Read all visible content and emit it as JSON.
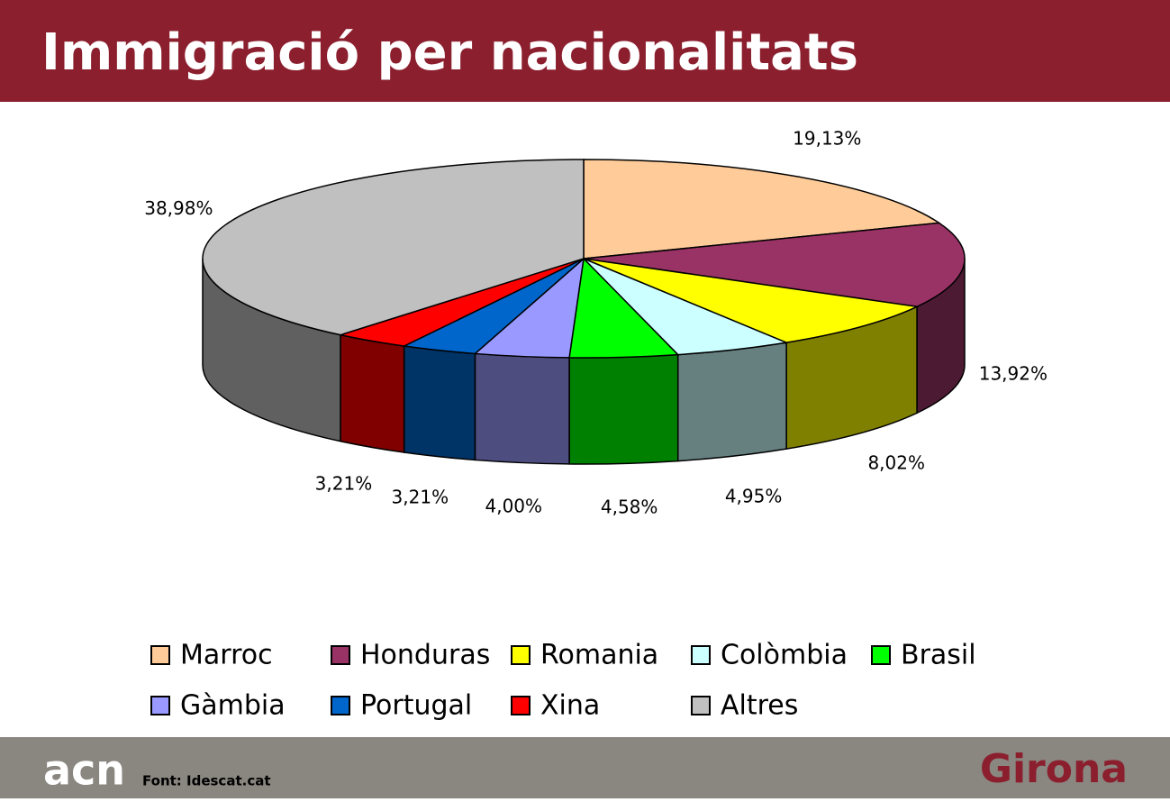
{
  "chart_data": {
    "type": "pie",
    "title": "Immigració per nacionalitats",
    "categories": [
      "Marroc",
      "Honduras",
      "Romania",
      "Colòmbia",
      "Brasil",
      "Gàmbia",
      "Portugal",
      "Xina",
      "Altres"
    ],
    "values": [
      19.13,
      13.92,
      8.02,
      4.95,
      4.58,
      4.0,
      3.21,
      3.21,
      38.98
    ],
    "value_labels": [
      "19,13%",
      "13,92%",
      "8,02%",
      "4,95%",
      "4,58%",
      "4,00%",
      "3,21%",
      "3,21%",
      "38,98%"
    ],
    "colors": [
      "#ffcc99",
      "#993366",
      "#ffff00",
      "#ccffff",
      "#00ff00",
      "#9999ff",
      "#0066cc",
      "#ff0000",
      "#c0c0c0"
    ],
    "legend": "bottom"
  },
  "footer": {
    "logo": "acn",
    "source": "Font: Idescat.cat",
    "location": "Girona"
  }
}
